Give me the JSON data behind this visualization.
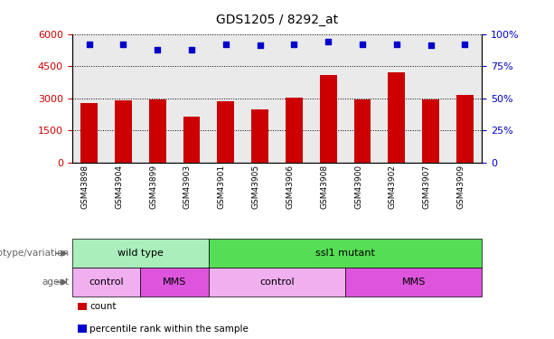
{
  "title": "GDS1205 / 8292_at",
  "samples": [
    "GSM43898",
    "GSM43904",
    "GSM43899",
    "GSM43903",
    "GSM43901",
    "GSM43905",
    "GSM43906",
    "GSM43908",
    "GSM43900",
    "GSM43902",
    "GSM43907",
    "GSM43909"
  ],
  "counts": [
    2800,
    2900,
    2950,
    2150,
    2850,
    2500,
    3050,
    4100,
    2950,
    4200,
    2950,
    3150
  ],
  "percentile_ranks": [
    92,
    92,
    88,
    88,
    92,
    91,
    92,
    94,
    92,
    92,
    91,
    92
  ],
  "bar_color": "#cc0000",
  "dot_color": "#0000cc",
  "ylim_left": [
    0,
    6000
  ],
  "ylim_right": [
    0,
    100
  ],
  "yticks_left": [
    0,
    1500,
    3000,
    4500,
    6000
  ],
  "yticks_right": [
    0,
    25,
    50,
    75,
    100
  ],
  "genotype_variation": [
    {
      "label": "wild type",
      "start": 0,
      "end": 4,
      "color": "#aaeebb"
    },
    {
      "label": "ssl1 mutant",
      "start": 4,
      "end": 12,
      "color": "#55dd55"
    }
  ],
  "agent": [
    {
      "label": "control",
      "start": 0,
      "end": 2,
      "color": "#f0b0f0"
    },
    {
      "label": "MMS",
      "start": 2,
      "end": 4,
      "color": "#dd55dd"
    },
    {
      "label": "control",
      "start": 4,
      "end": 8,
      "color": "#f0b0f0"
    },
    {
      "label": "MMS",
      "start": 8,
      "end": 12,
      "color": "#dd55dd"
    }
  ],
  "legend_items": [
    {
      "label": "count",
      "color": "#cc0000"
    },
    {
      "label": "percentile rank within the sample",
      "color": "#0000cc"
    }
  ],
  "background_color": "#ffffff",
  "tick_label_color_left": "#cc0000",
  "tick_label_color_right": "#0000cc",
  "sample_bg_color": "#cccccc",
  "row_label_color": "#666666"
}
